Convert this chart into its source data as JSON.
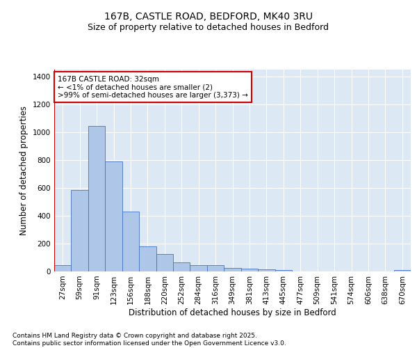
{
  "title_line1": "167B, CASTLE ROAD, BEDFORD, MK40 3RU",
  "title_line2": "Size of property relative to detached houses in Bedford",
  "xlabel": "Distribution of detached houses by size in Bedford",
  "ylabel": "Number of detached properties",
  "categories": [
    "27sqm",
    "59sqm",
    "91sqm",
    "123sqm",
    "156sqm",
    "188sqm",
    "220sqm",
    "252sqm",
    "284sqm",
    "316sqm",
    "349sqm",
    "381sqm",
    "413sqm",
    "445sqm",
    "477sqm",
    "509sqm",
    "541sqm",
    "574sqm",
    "606sqm",
    "638sqm",
    "670sqm"
  ],
  "values": [
    45,
    585,
    1045,
    790,
    430,
    180,
    125,
    65,
    45,
    45,
    25,
    22,
    15,
    10,
    0,
    0,
    0,
    0,
    0,
    0,
    10
  ],
  "bar_color": "#aec6e8",
  "bar_edge_color": "#4472c4",
  "highlight_color": "#cc0000",
  "annotation_text": "167B CASTLE ROAD: 32sqm\n← <1% of detached houses are smaller (2)\n>99% of semi-detached houses are larger (3,373) →",
  "annotation_box_color": "#ffffff",
  "annotation_box_edge_color": "#cc0000",
  "ylim": [
    0,
    1450
  ],
  "yticks": [
    0,
    200,
    400,
    600,
    800,
    1000,
    1200,
    1400
  ],
  "bg_color": "#dde8f5",
  "grid_color": "#ffffff",
  "footer_text": "Contains HM Land Registry data © Crown copyright and database right 2025.\nContains public sector information licensed under the Open Government Licence v3.0.",
  "title_fontsize": 10,
  "subtitle_fontsize": 9,
  "axis_label_fontsize": 8.5,
  "tick_fontsize": 7.5,
  "annotation_fontsize": 7.5,
  "footer_fontsize": 6.5
}
